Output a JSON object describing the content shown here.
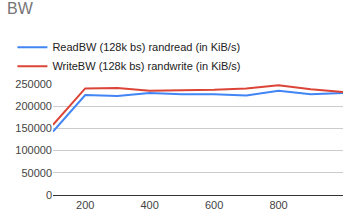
{
  "chart_data": {
    "type": "line",
    "title": "BW",
    "x": [
      100,
      200,
      300,
      400,
      500,
      600,
      700,
      800,
      900,
      1000
    ],
    "series": [
      {
        "name": "ReadBW (128k bs) randread (in KiB/s)",
        "color": "#4285f4",
        "values": [
          143000,
          225000,
          223000,
          230000,
          227000,
          227000,
          224000,
          235000,
          227000,
          230000
        ]
      },
      {
        "name": "WriteBW (128k bs) randwrite (in KiB/s)",
        "color": "#db4437",
        "values": [
          158000,
          240000,
          241000,
          235000,
          236000,
          237000,
          240000,
          247000,
          238000,
          232000
        ]
      }
    ],
    "xlim": [
      100,
      1000
    ],
    "xticks": [
      200,
      400,
      600,
      800
    ],
    "ylim": [
      0,
      250000
    ],
    "yticks": [
      0,
      50000,
      100000,
      150000,
      200000,
      250000
    ],
    "grid": true,
    "legend": "top"
  }
}
